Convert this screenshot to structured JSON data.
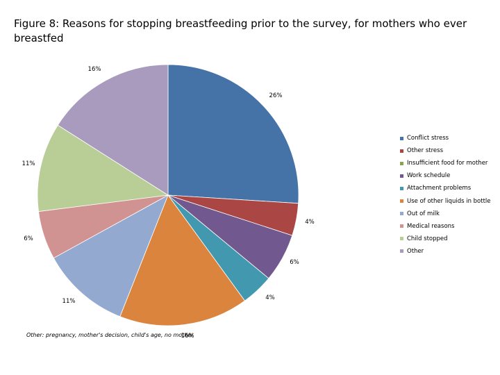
{
  "title": "Figure 8: Reasons for stopping breastfeeding prior to the survey, for mothers who ever breastfed",
  "footnote": "Other: pregnancy, mother's decision, child's age, no mother",
  "chart_data": {
    "type": "pie",
    "title": "Figure 8: Reasons for stopping breastfeeding prior to the survey, for mothers who ever breastfed",
    "legend_position": "right",
    "categories": [
      "Conflict stress",
      "Other stress",
      "Insufficient food for mother",
      "Work schedule",
      "Attachment problems",
      "Use of other liquids in bottle",
      "Out of milk",
      "Medical reasons",
      "Child stopped",
      "Other"
    ],
    "values": [
      26,
      4,
      0,
      6,
      4,
      16,
      11,
      6,
      11,
      16
    ],
    "labels": [
      "26%",
      "4%",
      "",
      "6%",
      "4%",
      "16%",
      "11%",
      "6%",
      "11%",
      "16%"
    ],
    "colors": [
      "#4572a7",
      "#aa4643",
      "#89a54e",
      "#71588f",
      "#4198af",
      "#db843d",
      "#93a9cf",
      "#d19392",
      "#b9cd96",
      "#a99bbd"
    ]
  }
}
